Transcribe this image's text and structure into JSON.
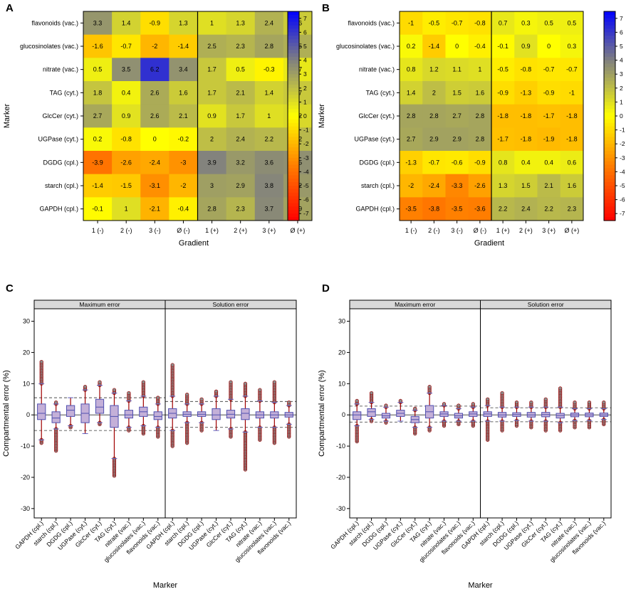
{
  "heatmaps": [
    {
      "panel": "A",
      "type": "heatmap",
      "ylabel": "Marker",
      "xlabel": "Gradient",
      "rows": [
        "flavonoids (vac.)",
        "glucosinolates (vac.)",
        "nitrate (vac.)",
        "TAG (cyt.)",
        "GlcCer (cyt.)",
        "UGPase (cyt.)",
        "DGDG (cpl.)",
        "starch (cpl.)",
        "GAPDH (cpl.)"
      ],
      "cols": [
        "1 (-)",
        "2 (-)",
        "3 (-)",
        "Ø (-)",
        "1 (+)",
        "2 (+)",
        "3 (+)",
        "Ø (+)"
      ],
      "values": [
        [
          3.3,
          1.4,
          -0.9,
          1.3,
          1,
          1.3,
          2.4,
          1.6
        ],
        [
          -1.6,
          -0.7,
          -2,
          -1.4,
          2.5,
          2.3,
          2.8,
          2.5
        ],
        [
          0.5,
          3.5,
          6.2,
          3.4,
          1.7,
          0.5,
          -0.3,
          0.7
        ],
        [
          1.8,
          0.4,
          2.6,
          1.6,
          1.7,
          2.1,
          1.4,
          1.7
        ],
        [
          2.7,
          0.9,
          2.6,
          2.1,
          0.9,
          1.7,
          1,
          1.2
        ],
        [
          0.2,
          -0.8,
          0,
          -0.2,
          2,
          2.4,
          2.2,
          2.2
        ],
        [
          -3.9,
          -2.6,
          -2.4,
          -3,
          3.9,
          3.2,
          3.6,
          3.5
        ],
        [
          -1.4,
          -1.5,
          -3.1,
          -2,
          3,
          2.9,
          3.8,
          3.2
        ],
        [
          -0.1,
          1,
          -2.1,
          -0.4,
          2.8,
          2.3,
          3.7,
          2.9
        ]
      ],
      "colorbar": {
        "range": [
          -7.5,
          7.5
        ],
        "ticks": [
          "7",
          "6",
          "5",
          "4",
          "3",
          "2",
          "1",
          "0",
          "-1",
          "-2",
          "-3",
          "-4",
          "-5",
          "-6",
          "-7"
        ]
      }
    },
    {
      "panel": "B",
      "type": "heatmap",
      "ylabel": "Marker",
      "xlabel": "Gradient",
      "rows": [
        "flavonoids (vac.)",
        "glucosinolates (vac.)",
        "nitrate (vac.)",
        "TAG (cyt.)",
        "GlcCer (cyt.)",
        "UGPase (cyt.)",
        "DGDG (cpl.)",
        "starch (cpl.)",
        "GAPDH (cpl.)"
      ],
      "cols": [
        "1 (-)",
        "2 (-)",
        "3 (-)",
        "Ø (-)",
        "1 (+)",
        "2 (+)",
        "3 (+)",
        "Ø (+)"
      ],
      "values": [
        [
          -1,
          -0.5,
          -0.7,
          -0.8,
          0.7,
          0.3,
          0.5,
          0.5
        ],
        [
          0.2,
          -1.4,
          0,
          -0.4,
          -0.1,
          0.9,
          0,
          0.3
        ],
        [
          0.8,
          1.2,
          1.1,
          1,
          -0.5,
          -0.8,
          -0.7,
          -0.7
        ],
        [
          1.4,
          2,
          1.5,
          1.6,
          -0.9,
          -1.3,
          -0.9,
          -1
        ],
        [
          2.8,
          2.8,
          2.7,
          2.8,
          -1.8,
          -1.8,
          -1.7,
          -1.8
        ],
        [
          2.7,
          2.9,
          2.9,
          2.8,
          -1.7,
          -1.8,
          -1.9,
          -1.8
        ],
        [
          -1.3,
          -0.7,
          -0.6,
          -0.9,
          0.8,
          0.4,
          0.4,
          0.6
        ],
        [
          -2,
          -2.4,
          -3.3,
          -2.6,
          1.3,
          1.5,
          2.1,
          1.6
        ],
        [
          -3.5,
          -3.8,
          -3.5,
          -3.6,
          2.2,
          2.4,
          2.2,
          2.3
        ]
      ],
      "colorbar": {
        "range": [
          -7.5,
          7.5
        ],
        "ticks": [
          "7",
          "6",
          "5",
          "4",
          "3",
          "2",
          "1",
          "0",
          "-1",
          "-2",
          "-3",
          "-4",
          "-5",
          "-6",
          "-7"
        ]
      }
    }
  ],
  "boxplots": [
    {
      "panel": "C",
      "type": "box",
      "ylabel": "Compartmental error (%)",
      "xlabel": "Marker",
      "ylim": [
        -33,
        34
      ],
      "yticks": [
        "30",
        "20",
        "10",
        "0",
        "-10",
        "-20",
        "-30"
      ],
      "strips": [
        "Maximum error",
        "Solution error"
      ],
      "markers": [
        "GAPDH (cpl.)",
        "starch (cpl.)",
        "DGDG (cpl.)",
        "UGPase (cyt.)",
        "GlcCer (cyt.)",
        "TAG (cyt.)",
        "nitrate (vac.)",
        "glucosinolates (vac.)",
        "flavonoids (vac.)"
      ],
      "ref_lines": {
        "max": [
          5.5,
          -5
        ],
        "sol": [
          4.3,
          -4
        ]
      },
      "max": [
        {
          "q1": -1.5,
          "q3": 3.5,
          "med": 0.5,
          "lo": -8,
          "hi": 10,
          "omin": -9,
          "omax": 17
        },
        {
          "q1": -2.5,
          "q3": 1,
          "med": -1,
          "lo": -4.5,
          "hi": 3.5,
          "omin": -11.5,
          "omax": 4
        },
        {
          "q1": -0.5,
          "q3": 3,
          "med": 1.5,
          "lo": -3.5,
          "hi": 5.5,
          "omin": -4,
          "omax": 5.5
        },
        {
          "q1": -2.5,
          "q3": 3.5,
          "med": 0.5,
          "lo": -6,
          "hi": 8,
          "omin": -6,
          "omax": 9
        },
        {
          "q1": 0.5,
          "q3": 5,
          "med": 2.5,
          "lo": -2.5,
          "hi": 9.5,
          "omin": -3,
          "omax": 10.5
        },
        {
          "q1": -4,
          "q3": 3,
          "med": -0.5,
          "lo": -14,
          "hi": 7,
          "omin": -19.5,
          "omax": 8
        },
        {
          "q1": -1,
          "q3": 1.5,
          "med": 0,
          "lo": -4,
          "hi": 4.5,
          "omin": -5,
          "omax": 7
        },
        {
          "q1": -0.5,
          "q3": 2.5,
          "med": 1,
          "lo": -3.5,
          "hi": 6,
          "omin": -6,
          "omax": 10.5
        },
        {
          "q1": -1.5,
          "q3": 1,
          "med": -0.5,
          "lo": -4,
          "hi": 3.5,
          "omin": -7,
          "omax": 5.5
        }
      ],
      "sol": [
        {
          "q1": -1,
          "q3": 2,
          "med": 0.5,
          "lo": -5,
          "hi": 6,
          "omin": -10,
          "omax": 16
        },
        {
          "q1": -0.5,
          "q3": 1,
          "med": 0.2,
          "lo": -2.5,
          "hi": 3.5,
          "omin": -9,
          "omax": 6.5
        },
        {
          "q1": -0.5,
          "q3": 1,
          "med": 0.2,
          "lo": -2.5,
          "hi": 3.5,
          "omin": -5,
          "omax": 5
        },
        {
          "q1": -1.5,
          "q3": 2,
          "med": 0,
          "lo": -5,
          "hi": 6,
          "omin": -5,
          "omax": 7.5
        },
        {
          "q1": -1,
          "q3": 1.5,
          "med": 0.2,
          "lo": -4.5,
          "hi": 5,
          "omin": -7,
          "omax": 10.5
        },
        {
          "q1": -1.5,
          "q3": 2,
          "med": 0.5,
          "lo": -5.5,
          "hi": 6,
          "omin": -17.5,
          "omax": 10
        },
        {
          "q1": -1,
          "q3": 1,
          "med": 0,
          "lo": -4,
          "hi": 4.5,
          "omin": -8,
          "omax": 8
        },
        {
          "q1": -1,
          "q3": 1,
          "med": 0,
          "lo": -4,
          "hi": 4,
          "omin": -9,
          "omax": 10.5
        },
        {
          "q1": -0.7,
          "q3": 0.8,
          "med": 0,
          "lo": -3,
          "hi": 3,
          "omin": -7,
          "omax": 4
        }
      ]
    },
    {
      "panel": "D",
      "type": "box",
      "ylabel": "Compartmental error (%)",
      "xlabel": "Marker",
      "ylim": [
        -33,
        34
      ],
      "yticks": [
        "30",
        "20",
        "10",
        "0",
        "-10",
        "-20",
        "-30"
      ],
      "strips": [
        "Maximum error",
        "Solution error"
      ],
      "markers": [
        "GAPDH (cpl.)",
        "starch (cpl.)",
        "DGDG (cpl.)",
        "UGPase (cyt.)",
        "GlcCer (cyt.)",
        "TAG (cyt.)",
        "nitrate (vac.)",
        "glucosinolates (vac.)",
        "flavonoids (vac.)"
      ],
      "ref_lines": {
        "max": [
          2.8,
          -2.3
        ],
        "sol": [
          2.3,
          -2.2
        ]
      },
      "max": [
        {
          "q1": -1.5,
          "q3": 1,
          "med": 0,
          "lo": -3.5,
          "hi": 3.5,
          "omin": -8.5,
          "omax": 4.5
        },
        {
          "q1": -0.5,
          "q3": 2,
          "med": 1,
          "lo": -1.5,
          "hi": 4,
          "omin": -2,
          "omax": 7
        },
        {
          "q1": -1,
          "q3": 0.5,
          "med": -0.3,
          "lo": -2,
          "hi": 2.5,
          "omin": -2.5,
          "omax": 3
        },
        {
          "q1": -0.5,
          "q3": 1.5,
          "med": 0.5,
          "lo": -2,
          "hi": 4,
          "omin": -2,
          "omax": 4.5
        },
        {
          "q1": -2.5,
          "q3": -0.5,
          "med": -1.5,
          "lo": -4,
          "hi": 1.5,
          "omin": -6,
          "omax": 2
        },
        {
          "q1": -1,
          "q3": 3,
          "med": 1,
          "lo": -4,
          "hi": 7,
          "omin": -5,
          "omax": 9
        },
        {
          "q1": -0.5,
          "q3": 1,
          "med": 0.3,
          "lo": -2,
          "hi": 3,
          "omin": -3.5,
          "omax": 3.5
        },
        {
          "q1": -1,
          "q3": 0.5,
          "med": -0.3,
          "lo": -2,
          "hi": 2,
          "omin": -3,
          "omax": 3
        },
        {
          "q1": -0.5,
          "q3": 1,
          "med": 0.3,
          "lo": -2,
          "hi": 2.5,
          "omin": -3.5,
          "omax": 3.5
        }
      ],
      "sol": [
        {
          "q1": -0.5,
          "q3": 1,
          "med": 0.3,
          "lo": -2,
          "hi": 3,
          "omin": -8,
          "omax": 5
        },
        {
          "q1": -0.7,
          "q3": 0.8,
          "med": 0,
          "lo": -2,
          "hi": 2.5,
          "omin": -5,
          "omax": 7
        },
        {
          "q1": -0.5,
          "q3": 0.7,
          "med": 0.1,
          "lo": -1.8,
          "hi": 2.5,
          "omin": -3.5,
          "omax": 4
        },
        {
          "q1": -0.7,
          "q3": 0.8,
          "med": 0,
          "lo": -2,
          "hi": 2.5,
          "omin": -4,
          "omax": 4
        },
        {
          "q1": -0.6,
          "q3": 0.8,
          "med": 0.1,
          "lo": -2,
          "hi": 2.5,
          "omin": -5,
          "omax": 5
        },
        {
          "q1": -1,
          "q3": 0.5,
          "med": -0.2,
          "lo": -2.5,
          "hi": 2.5,
          "omin": -5,
          "omax": 8.5
        },
        {
          "q1": -0.6,
          "q3": 0.6,
          "med": 0,
          "lo": -1.8,
          "hi": 2,
          "omin": -4,
          "omax": 4
        },
        {
          "q1": -0.6,
          "q3": 0.6,
          "med": 0,
          "lo": -1.8,
          "hi": 2,
          "omin": -4,
          "omax": 4
        },
        {
          "q1": -0.5,
          "q3": 0.6,
          "med": 0,
          "lo": -1.5,
          "hi": 2,
          "omin": -3,
          "omax": 4
        }
      ]
    }
  ]
}
